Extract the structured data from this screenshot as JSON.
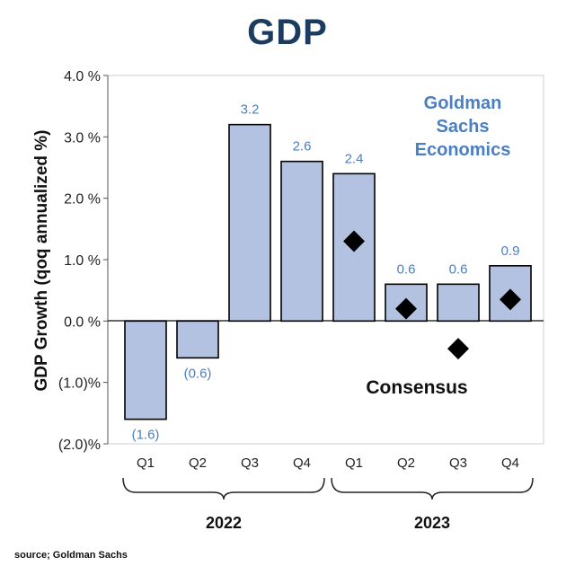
{
  "title": "GDP",
  "source": "source; Goldman Sachs",
  "colors": {
    "bar_fill": "#b4c2e2",
    "bar_stroke": "#000000",
    "label_blue": "#4a7fc1",
    "title": "#1b3b5f",
    "marker": "#000000"
  },
  "chart_data": {
    "type": "bar",
    "ylabel": "GDP Growth (qoq annualized %)",
    "ylim": [
      -2.0,
      4.0
    ],
    "yticks": [
      4.0,
      3.0,
      2.0,
      1.0,
      0.0,
      -1.0,
      -2.0
    ],
    "ytick_labels": [
      "4.0 %",
      "3.0 %",
      "2.0 %",
      "1.0 %",
      "0.0 %",
      "(1.0)%",
      "(2.0)%"
    ],
    "categories": [
      "Q1",
      "Q2",
      "Q3",
      "Q4",
      "Q1",
      "Q2",
      "Q3",
      "Q4"
    ],
    "groups": [
      {
        "label": "2022",
        "start": 0,
        "end": 3
      },
      {
        "label": "2023",
        "start": 4,
        "end": 7
      }
    ],
    "series": [
      {
        "name": "Goldman Sachs Economics",
        "type": "bar",
        "values": [
          -1.6,
          -0.6,
          3.2,
          2.6,
          2.4,
          0.6,
          0.6,
          0.9
        ],
        "labels": [
          "(1.6)",
          "(0.6)",
          "3.2",
          "2.6",
          "2.4",
          "0.6",
          "0.6",
          "0.9"
        ]
      },
      {
        "name": "Consensus",
        "type": "marker",
        "values": [
          null,
          null,
          null,
          null,
          1.3,
          0.2,
          -0.45,
          0.35
        ]
      }
    ],
    "legend_gs": [
      "Goldman",
      "Sachs",
      "Economics"
    ],
    "legend_consensus": "Consensus"
  }
}
